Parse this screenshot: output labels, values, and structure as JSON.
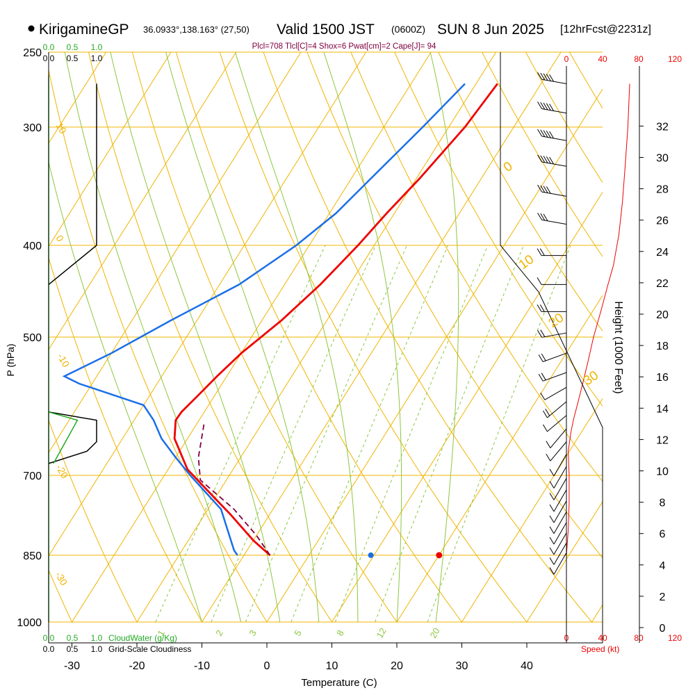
{
  "header": {
    "site": "KirigamineGP",
    "coords": "36.0933°,138.163° (27,50)",
    "valid": "Valid 1500 JST",
    "zulu": "(0600Z)",
    "date": "SUN 8 Jun 2025",
    "fcst": "[12hrFcst@2231z]",
    "indices": "Plcl=708 Tlcl[C]=4 Shox=6 Pwat[cm]=2 Cape[J]= 94"
  },
  "colors": {
    "temperature": "#ee0000",
    "dewpoint": "#1a6fe8",
    "isobar": "#f0b400",
    "mixing_ratio": "#8cc63f",
    "parcel": "#800040",
    "cloudwater": "#22aa22",
    "speed": "#ee0000"
  },
  "chart_data": {
    "type": "line",
    "title": "",
    "xlabel": "Temperature (C)",
    "ylabel": "P (hPa)",
    "right_axis_label": "Height (1000 Feet)",
    "x_ticks": [
      "-30",
      "-20",
      "-10",
      "0",
      "10",
      "20",
      "30",
      "40"
    ],
    "pressure_ticks": [
      "250",
      "300",
      "400",
      "500",
      "700",
      "850",
      "1000"
    ],
    "height_ticks": [
      "0",
      "2",
      "4",
      "6",
      "8",
      "10",
      "12",
      "14",
      "16",
      "18",
      "20",
      "22",
      "24",
      "26",
      "28",
      "30",
      "32"
    ],
    "mixing_ratio_labels": [
      "1",
      "2",
      "3",
      "5",
      "8",
      "12",
      "20"
    ],
    "dry_adiabat_labels": [
      "10",
      "0",
      "-10",
      "-20",
      "-30"
    ],
    "moist_adiabat_labels": [
      "0",
      "10",
      "20",
      "30"
    ],
    "cloudwater": {
      "label": "CloudWater (g/Kg)",
      "ticks": [
        "0.0",
        "0.5",
        "1.0"
      ]
    },
    "cloudiness": {
      "label": "Grid-Scale Cloudiness",
      "ticks": [
        "0.0",
        "0.5",
        "1.0"
      ]
    },
    "speed": {
      "label": "Speed (kt)",
      "ticks": [
        "0",
        "40",
        "80",
        "120"
      ]
    },
    "series": [
      {
        "name": "temperature",
        "points": [
          [
            -16.7,
            270
          ],
          [
            -17.5,
            300
          ],
          [
            -19.5,
            340
          ],
          [
            -21.2,
            370
          ],
          [
            -22.5,
            400
          ],
          [
            -24.5,
            440
          ],
          [
            -27,
            480
          ],
          [
            -30,
            520
          ],
          [
            -31.5,
            550
          ],
          [
            -32.5,
            575
          ],
          [
            -33.5,
            600
          ],
          [
            -33.6,
            612
          ],
          [
            -32,
            640
          ],
          [
            -27,
            690
          ],
          [
            -20,
            740
          ],
          [
            -16,
            770
          ],
          [
            -10,
            820
          ],
          [
            -6,
            850
          ]
        ]
      },
      {
        "name": "dewpoint",
        "points": [
          [
            -21.7,
            270
          ],
          [
            -24,
            300
          ],
          [
            -27,
            340
          ],
          [
            -29,
            370
          ],
          [
            -32,
            400
          ],
          [
            -37,
            440
          ],
          [
            -44,
            480
          ],
          [
            -50,
            520
          ],
          [
            -55,
            550
          ],
          [
            -52,
            560
          ],
          [
            -40,
            590
          ],
          [
            -37,
            612
          ],
          [
            -34,
            640
          ],
          [
            -30,
            670
          ],
          [
            -26,
            700
          ],
          [
            -18,
            760
          ],
          [
            -12,
            840
          ],
          [
            -11,
            850
          ]
        ]
      },
      {
        "name": "parcel",
        "points": [
          [
            -6,
            850
          ],
          [
            -10,
            810
          ],
          [
            -16,
            760
          ],
          [
            -24,
            708
          ],
          [
            -26.5,
            670
          ],
          [
            -29,
            615
          ]
        ]
      }
    ],
    "surface_dewpoint_dot": {
      "t": 16.0,
      "p": 850
    },
    "surface_temperature_dot": {
      "t": 26.5,
      "p": 850
    },
    "cloudwater_layer": [
      [
        0.0,
        600
      ],
      [
        0.6,
        612
      ],
      [
        0.1,
        680
      ]
    ],
    "cloudiness_layer_high": [
      [
        1.0,
        270
      ],
      [
        1.0,
        400
      ],
      [
        0.0,
        440
      ]
    ],
    "cloudiness_layer_low": [
      [
        0.0,
        600
      ],
      [
        1.0,
        612
      ],
      [
        1.0,
        645
      ],
      [
        0.8,
        660
      ],
      [
        0.0,
        680
      ]
    ],
    "wind_speed_profile": [
      [
        0,
        850
      ],
      [
        2,
        800
      ],
      [
        3,
        750
      ],
      [
        3,
        700
      ],
      [
        2,
        660
      ],
      [
        5,
        630
      ],
      [
        8,
        610
      ],
      [
        12,
        590
      ],
      [
        18,
        560
      ],
      [
        24,
        530
      ],
      [
        30,
        500
      ],
      [
        38,
        470
      ],
      [
        46,
        440
      ],
      [
        52,
        420
      ],
      [
        58,
        390
      ],
      [
        62,
        360
      ],
      [
        65,
        330
      ],
      [
        68,
        300
      ],
      [
        70,
        270
      ]
    ],
    "wind_barbs": [
      {
        "p": 270,
        "speed": 50,
        "dir": 280
      },
      {
        "p": 290,
        "speed": 50,
        "dir": 280
      },
      {
        "p": 310,
        "speed": 50,
        "dir": 280
      },
      {
        "p": 330,
        "speed": 45,
        "dir": 280
      },
      {
        "p": 355,
        "speed": 40,
        "dir": 280
      },
      {
        "p": 380,
        "speed": 30,
        "dir": 280
      },
      {
        "p": 410,
        "speed": 15,
        "dir": 270
      },
      {
        "p": 440,
        "speed": 10,
        "dir": 270
      },
      {
        "p": 470,
        "speed": 15,
        "dir": 270
      },
      {
        "p": 495,
        "speed": 20,
        "dir": 260
      },
      {
        "p": 520,
        "speed": 15,
        "dir": 250
      },
      {
        "p": 545,
        "speed": 15,
        "dir": 250
      },
      {
        "p": 565,
        "speed": 10,
        "dir": 240
      },
      {
        "p": 585,
        "speed": 15,
        "dir": 230
      },
      {
        "p": 605,
        "speed": 10,
        "dir": 230
      },
      {
        "p": 625,
        "speed": 10,
        "dir": 220
      },
      {
        "p": 645,
        "speed": 10,
        "dir": 220
      },
      {
        "p": 665,
        "speed": 10,
        "dir": 210
      },
      {
        "p": 685,
        "speed": 10,
        "dir": 210
      },
      {
        "p": 705,
        "speed": 10,
        "dir": 210
      },
      {
        "p": 725,
        "speed": 10,
        "dir": 210
      },
      {
        "p": 745,
        "speed": 10,
        "dir": 210
      },
      {
        "p": 765,
        "speed": 10,
        "dir": 210
      },
      {
        "p": 785,
        "speed": 10,
        "dir": 210
      },
      {
        "p": 805,
        "speed": 10,
        "dir": 210
      },
      {
        "p": 825,
        "speed": 10,
        "dir": 210
      },
      {
        "p": 845,
        "speed": 10,
        "dir": 210
      }
    ]
  }
}
